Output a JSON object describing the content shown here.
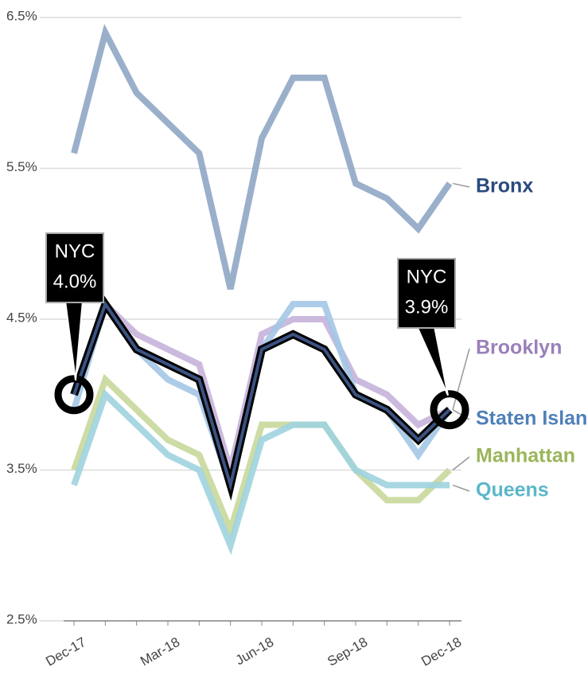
{
  "chart_data": {
    "type": "line",
    "categories": [
      "Dec-17",
      null,
      null,
      "Mar-18",
      null,
      null,
      "Jun-18",
      null,
      null,
      "Sep-18",
      null,
      null,
      "Dec-18"
    ],
    "ylim": [
      2.5,
      6.5
    ],
    "yticks": [
      {
        "value": 2.5,
        "label": "2.5%"
      },
      {
        "value": 3.5,
        "label": "3.5%"
      },
      {
        "value": 4.5,
        "label": "4.5%"
      },
      {
        "value": 5.5,
        "label": "5.5%"
      },
      {
        "value": 6.5,
        "label": "6.5%"
      }
    ],
    "grid": true,
    "series": [
      {
        "name": "Bronx",
        "color": "#8fa6c4",
        "label_color": "#2b4a7e",
        "values": [
          5.6,
          6.4,
          6.0,
          5.8,
          5.6,
          4.7,
          5.7,
          6.1,
          6.1,
          5.4,
          5.3,
          5.1,
          5.4
        ]
      },
      {
        "name": "Manhattan",
        "color": "#c8d89a",
        "label_color": "#9bb55a",
        "values": [
          3.5,
          4.1,
          3.9,
          3.7,
          3.6,
          3.1,
          3.8,
          3.8,
          3.8,
          3.5,
          3.3,
          3.3,
          3.5
        ]
      },
      {
        "name": "Queens",
        "color": "#9fd3df",
        "label_color": "#5bb7c8",
        "values": [
          3.4,
          4.0,
          3.8,
          3.6,
          3.5,
          3.0,
          3.7,
          3.8,
          3.8,
          3.5,
          3.4,
          3.4,
          3.4
        ]
      },
      {
        "name": "Brooklyn",
        "color": "#c6b3da",
        "label_color": "#9a80b8",
        "values": [
          4.0,
          4.6,
          4.4,
          4.3,
          4.2,
          3.5,
          4.4,
          4.5,
          4.5,
          4.1,
          4.0,
          3.8,
          3.9
        ]
      },
      {
        "name": "Staten Island",
        "color": "#a3c6e6",
        "label_color": "#4f80b8",
        "values": [
          3.9,
          4.6,
          4.3,
          4.1,
          4.0,
          3.4,
          4.3,
          4.6,
          4.6,
          4.0,
          3.9,
          3.6,
          3.9
        ]
      },
      {
        "name": "NYC",
        "color": "#000000",
        "values": [
          4.0,
          4.6,
          4.3,
          4.2,
          4.1,
          3.4,
          4.3,
          4.4,
          4.3,
          4.0,
          3.9,
          3.7,
          3.9
        ],
        "value_labels": [
          "4.0%",
          null,
          null,
          null,
          null,
          null,
          null,
          null,
          null,
          null,
          null,
          null,
          "3.9%"
        ]
      }
    ]
  }
}
